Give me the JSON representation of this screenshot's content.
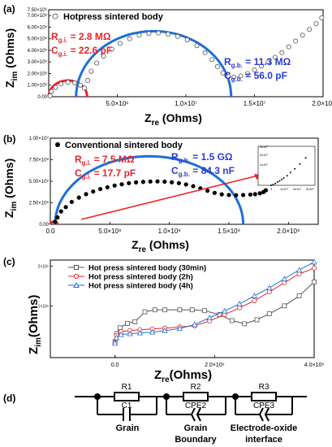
{
  "colors": {
    "red": "#e8252a",
    "blue": "#1f6fd6",
    "blue_text": "#2b3bd0",
    "black": "#000000",
    "gray": "#555555"
  },
  "panels": [
    {
      "chart_data": {
        "label": "(a)",
        "type": "scatter",
        "xlabel_main": "Z",
        "xlabel_sub": "re",
        "xlabel_unit": " (Ohms)",
        "ylabel_main": "Z",
        "ylabel_sub": "im",
        "ylabel_unit": " (Ohms)",
        "xlim": [
          0,
          20000000
        ],
        "ylim": [
          0,
          7500000
        ],
        "xticks": [
          {
            "v": 5000000,
            "t": "5.0×10⁶"
          },
          {
            "v": 10000000,
            "t": "1.0×10⁷"
          },
          {
            "v": 15000000,
            "t": "1.5×10⁷"
          },
          {
            "v": 20000000,
            "t": "2.0×10⁷"
          }
        ],
        "yticks": [
          {
            "v": 0,
            "t": "0.00"
          },
          {
            "v": 1000000,
            "t": "1.00×10⁶"
          },
          {
            "v": 2000000,
            "t": "2.00×10⁶"
          },
          {
            "v": 3000000,
            "t": "3.00×10⁶"
          },
          {
            "v": 4000000,
            "t": "4.00×10⁶"
          },
          {
            "v": 5000000,
            "t": "5.00×10⁶"
          },
          {
            "v": 6000000,
            "t": "6.00×10⁶"
          },
          {
            "v": 7000000,
            "t": "7.00×10⁶"
          },
          {
            "v": 7500000,
            "t": "7.50×10⁶"
          }
        ],
        "legend": "Hotpress sintered body",
        "annotations": {
          "rgi": "R",
          "rgi_sub": "g.i.",
          "rgi_val": " = 2.8 MΩ",
          "cgi": "C",
          "cgi_sub": "g.i.",
          "cgi_val": " = 22.6 pF",
          "rgb": "R",
          "rgb_sub": "g.b.",
          "rgb_val": " = 11.3 MΩ",
          "cgb": "C",
          "cgb_sub": "g.b.",
          "cgb_val": " = 56.0 pF"
        },
        "fits": [
          {
            "name": "grain",
            "color": "red",
            "x0": 0,
            "x1": 2800000
          },
          {
            "name": "grain boundary",
            "color": "blue",
            "x0": 2000000,
            "x1": 13300000
          }
        ],
        "series_points": [
          [
            100000,
            80000
          ],
          [
            200000,
            450000
          ],
          [
            500000,
            800000
          ],
          [
            900000,
            1100000
          ],
          [
            1400000,
            1250000
          ],
          [
            1900000,
            1200000
          ],
          [
            2300000,
            1000000
          ],
          [
            2600000,
            750000
          ],
          [
            2850000,
            1400000
          ],
          [
            3100000,
            2200000
          ],
          [
            3500000,
            2900000
          ],
          [
            4000000,
            3500000
          ],
          [
            4600000,
            4100000
          ],
          [
            5200000,
            4600000
          ],
          [
            5900000,
            5000000
          ],
          [
            6600000,
            5300000
          ],
          [
            7300000,
            5450000
          ],
          [
            8000000,
            5500000
          ],
          [
            8700000,
            5400000
          ],
          [
            9400000,
            5200000
          ],
          [
            10100000,
            4900000
          ],
          [
            10800000,
            4400000
          ],
          [
            11400000,
            3800000
          ],
          [
            11900000,
            3200000
          ],
          [
            12300000,
            2600000
          ],
          [
            12700000,
            2050000
          ],
          [
            13100000,
            1750000
          ],
          [
            13500000,
            1700000
          ],
          [
            14000000,
            1800000
          ],
          [
            14500000,
            2000000
          ],
          [
            15000000,
            2300000
          ],
          [
            15500000,
            2650000
          ],
          [
            16000000,
            3000000
          ],
          [
            16500000,
            3400000
          ],
          [
            17000000,
            3800000
          ],
          [
            17500000,
            4300000
          ],
          [
            18000000,
            4800000
          ],
          [
            18500000,
            5300000
          ],
          [
            19000000,
            5800000
          ],
          [
            19500000,
            6300000
          ],
          [
            19900000,
            6800000
          ]
        ]
      }
    },
    {
      "chart_data": {
        "label": "(b)",
        "type": "scatter",
        "xlabel_main": "Z",
        "xlabel_sub": "re",
        "xlabel_unit": " (Ohms)",
        "ylabel_main": "Z",
        "ylabel_sub": "im",
        "ylabel_unit": " (Ohms)",
        "xlim": [
          0,
          2250000000
        ],
        "ylim": [
          0,
          1000000000
        ],
        "xticks": [
          {
            "v": 0,
            "t": "0.0"
          },
          {
            "v": 500000000,
            "t": "5.0×10⁸"
          },
          {
            "v": 1000000000,
            "t": "1.0×10⁹"
          },
          {
            "v": 1500000000,
            "t": "1.5×10⁹"
          },
          {
            "v": 2000000000,
            "t": "2.0×10⁹"
          }
        ],
        "yticks": [
          {
            "v": 0,
            "t": "0.00"
          },
          {
            "v": 250000000,
            "t": "2.50×10⁸"
          },
          {
            "v": 500000000,
            "t": "5.00×10⁸"
          },
          {
            "v": 750000000,
            "t": "7.50×10⁸"
          },
          {
            "v": 1000000000,
            "t": "1.00×10⁹"
          }
        ],
        "legend": "Conventional sintered body",
        "annotations": {
          "rgi": "R",
          "rgi_sub": "g.i.",
          "rgi_val": " = 7.5 MΩ",
          "cgi": "C",
          "cgi_sub": "g.i.",
          "cgi_val": " = 17.7 pF",
          "rgb": "R",
          "rgb_sub": "g.b.",
          "rgb_val": " = 1.5 GΩ",
          "cgb": "C",
          "cgb_sub": "g.b.",
          "cgb_val": " = 84.3 nF"
        },
        "inset": {
          "xticks": [
            "0",
            "1x10⁷",
            "2x10⁷",
            "3x10⁷"
          ],
          "yticks": [
            "0",
            "1x10⁷",
            "2x10⁷",
            "3x10⁷"
          ]
        },
        "fits": [
          {
            "name": "grain",
            "color": "red",
            "x0": 0,
            "x1": 60000000
          },
          {
            "name": "grain boundary",
            "color": "blue",
            "x0": 40000000,
            "x1": 1620000000
          }
        ],
        "series_points": [
          [
            40000000,
            30000000
          ],
          [
            60000000,
            80000000
          ],
          [
            90000000,
            150000000
          ],
          [
            130000000,
            200000000
          ],
          [
            180000000,
            260000000
          ],
          [
            240000000,
            310000000
          ],
          [
            300000000,
            350000000
          ],
          [
            360000000,
            380000000
          ],
          [
            420000000,
            410000000
          ],
          [
            480000000,
            430000000
          ],
          [
            540000000,
            450000000
          ],
          [
            600000000,
            465000000
          ],
          [
            660000000,
            478000000
          ],
          [
            720000000,
            487000000
          ],
          [
            780000000,
            493000000
          ],
          [
            840000000,
            497000000
          ],
          [
            900000000,
            498000000
          ],
          [
            960000000,
            495000000
          ],
          [
            1020000000,
            488000000
          ],
          [
            1080000000,
            478000000
          ],
          [
            1140000000,
            463000000
          ],
          [
            1200000000,
            443000000
          ],
          [
            1260000000,
            418000000
          ],
          [
            1320000000,
            390000000
          ],
          [
            1380000000,
            365000000
          ],
          [
            1440000000,
            348000000
          ],
          [
            1500000000,
            340000000
          ],
          [
            1560000000,
            338000000
          ],
          [
            1620000000,
            340000000
          ],
          [
            1680000000,
            345000000
          ],
          [
            1720000000,
            350000000
          ],
          [
            1760000000,
            360000000
          ],
          [
            1790000000,
            375000000
          ],
          [
            1810000000,
            395000000
          ]
        ]
      }
    },
    {
      "chart_data": {
        "label": "(c)",
        "type": "line",
        "xlabel_main": "Z",
        "xlabel_sub": "re",
        "xlabel_unit": "(Ohms)",
        "ylabel_main": "Z",
        "ylabel_sub": "im",
        "ylabel_unit": "(Ohms)",
        "xlim": [
          -1300000,
          4000000
        ],
        "ylim": [
          -300000,
          2150000
        ],
        "xticks": [
          {
            "v": 0,
            "t": "0.0"
          },
          {
            "v": 2000000,
            "t": "2.0×10⁶"
          },
          {
            "v": 4000000,
            "t": "4.0×10⁶"
          }
        ],
        "yticks": [
          {
            "v": 1000000,
            "t": "1×10⁶"
          },
          {
            "v": 2000000,
            "t": "2×10⁶"
          }
        ],
        "series": [
          {
            "name": "Hot press sintered body (30min)",
            "color": "gray",
            "marker": "square",
            "points": [
              [
                0,
                100000
              ],
              [
                30000,
                300000
              ],
              [
                100000,
                450000
              ],
              [
                250000,
                560000
              ],
              [
                400000,
                600000
              ],
              [
                600000,
                850000
              ],
              [
                800000,
                900000
              ],
              [
                1000000,
                900000
              ],
              [
                1300000,
                900000
              ],
              [
                1550000,
                900000
              ],
              [
                1800000,
                880000
              ],
              [
                2100000,
                780000
              ],
              [
                2350000,
                630000
              ],
              [
                2600000,
                550000
              ],
              [
                2850000,
                650000
              ],
              [
                3100000,
                800000
              ],
              [
                3400000,
                1000000
              ],
              [
                3700000,
                1250000
              ],
              [
                4000000,
                1600000
              ]
            ]
          },
          {
            "name": "Hot press sintered body (2h)",
            "color": "red",
            "marker": "circle",
            "points": [
              [
                0,
                80000
              ],
              [
                30000,
                250000
              ],
              [
                120000,
                350000
              ],
              [
                300000,
                380000
              ],
              [
                500000,
                400000
              ],
              [
                750000,
                420000
              ],
              [
                1000000,
                440000
              ],
              [
                1300000,
                470000
              ],
              [
                1600000,
                500000
              ],
              [
                1900000,
                620000
              ],
              [
                2200000,
                780000
              ],
              [
                2500000,
                950000
              ],
              [
                2800000,
                1130000
              ],
              [
                3100000,
                1350000
              ],
              [
                3400000,
                1580000
              ],
              [
                3700000,
                1800000
              ],
              [
                4000000,
                1950000
              ]
            ]
          },
          {
            "name": "Hot press sintered body (4h)",
            "color": "blue",
            "marker": "triangle",
            "points": [
              [
                0,
                60000
              ],
              [
                30000,
                200000
              ],
              [
                120000,
                280000
              ],
              [
                300000,
                300000
              ],
              [
                500000,
                320000
              ],
              [
                750000,
                340000
              ],
              [
                1000000,
                380000
              ],
              [
                1300000,
                430000
              ],
              [
                1600000,
                530000
              ],
              [
                1900000,
                700000
              ],
              [
                2200000,
                870000
              ],
              [
                2500000,
                1050000
              ],
              [
                2800000,
                1250000
              ],
              [
                3100000,
                1450000
              ],
              [
                3400000,
                1680000
              ],
              [
                3700000,
                1900000
              ],
              [
                4000000,
                2100000
              ]
            ]
          }
        ]
      }
    }
  ],
  "circuit": {
    "label": "(d)",
    "r1": "R1",
    "c1": "C1",
    "r2": "R2",
    "cpe2": "CPE2",
    "r3": "R3",
    "cpe3": "CPE3",
    "cap1_line1": "Grain",
    "cap2_line1": "Grain",
    "cap2_line2": "Boundary",
    "cap3_line1": "Electrode-oxide",
    "cap3_line2": "interface"
  }
}
